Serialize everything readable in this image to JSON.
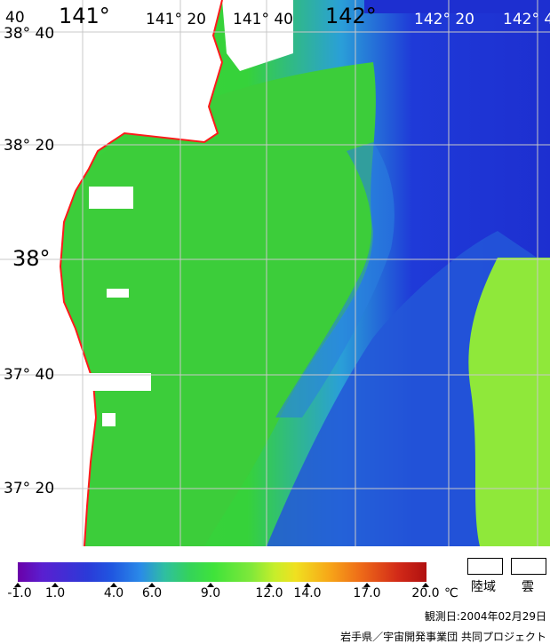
{
  "map": {
    "lon_labels": {
      "lon_40": "40",
      "lon_141": "141°",
      "lon_141_20": "141° 20",
      "lon_141_40": "141° 40",
      "lon_142": "142°",
      "lon_142_20": "142° 20",
      "lon_142_4": "142° 4"
    },
    "lat_labels": {
      "lat_38_40": "38° 40",
      "lat_38_20": "38° 20",
      "lat_38": "38°",
      "lat_37_40": "37° 40",
      "lat_37_20": "37° 20"
    },
    "colors": {
      "coast": "#ff1a1a",
      "grid": "#c8c8c8",
      "land": "#ffffff",
      "deep": "#1f3ad8",
      "mid": "#2a8ae8",
      "warm": "#36d23a",
      "warmer": "#8fe83a"
    }
  },
  "legend": {
    "ticks": [
      "-1.0",
      "1.0",
      "4.0",
      "6.0",
      "9.0",
      "12.0",
      "14.0",
      "17.0",
      "20.0"
    ],
    "unit": "℃",
    "land_label": "陸域",
    "cloud_label": "雲"
  },
  "footer": {
    "date": "観測日:2004年02月29日",
    "credit": "岩手県／宇宙開発事業団 共同プロジェクト"
  }
}
